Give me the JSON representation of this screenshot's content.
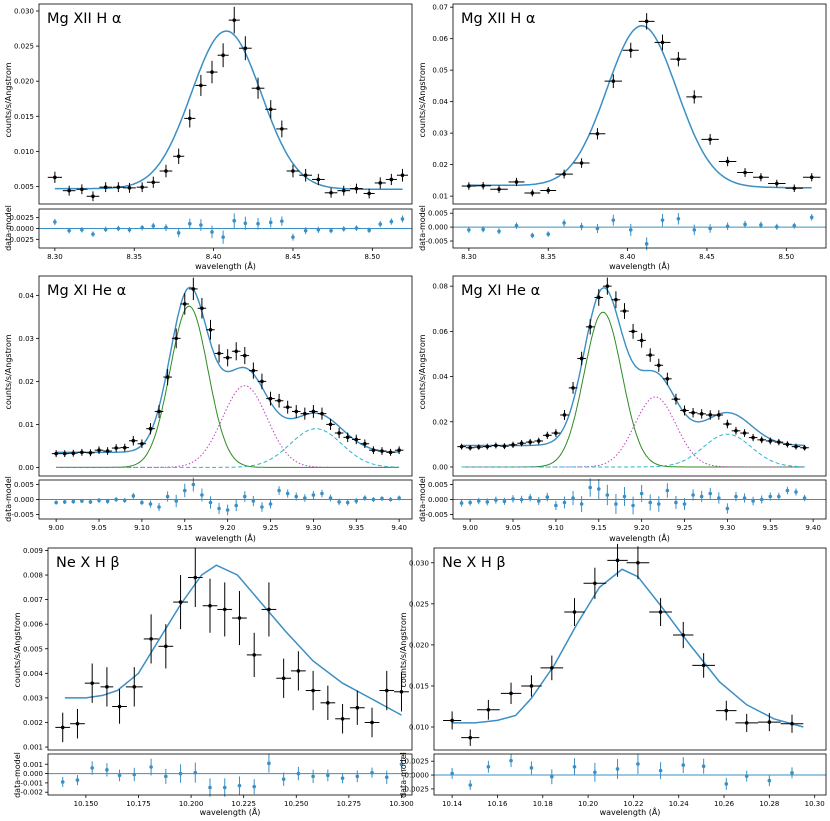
{
  "figure": {
    "xlabel": "wavelength (Å)",
    "residual_ylabel": "data-model",
    "ylabel": "counts/s/Angstrom"
  },
  "colors": {
    "model": "#3a8fc4",
    "data": "#000000",
    "resid": "#3a8fc4",
    "comp1": "#2e8b22",
    "comp2": "#c040c0",
    "comp3": "#2bb5c8"
  },
  "chart_data": [
    {
      "type": "line",
      "title": "Mg XII H α",
      "xlim": [
        8.29,
        8.525
      ],
      "ylim": [
        0.0025,
        0.031
      ],
      "xticks": [
        "8.30",
        "8.35",
        "8.40",
        "8.45",
        "8.50"
      ],
      "yticks": [
        "0.005",
        "0.010",
        "0.015",
        "0.020",
        "0.025",
        "0.030"
      ],
      "ylabel": "counts/s/Angstrom",
      "xlabel": "wavelength (Å)",
      "model": {
        "center": 8.408,
        "sigma": 0.022,
        "amp": 0.0225,
        "base": 0.0047,
        "slope": -0.0005
      },
      "data_x": [
        8.3,
        8.309,
        8.317,
        8.324,
        8.332,
        8.34,
        8.347,
        8.355,
        8.362,
        8.37,
        8.378,
        8.385,
        8.392,
        8.399,
        8.406,
        8.413,
        8.42,
        8.428,
        8.436,
        8.443,
        8.45,
        8.458,
        8.466,
        8.474,
        8.482,
        8.49,
        8.498,
        8.505,
        8.512,
        8.519
      ],
      "data_y": [
        0.0063,
        0.0044,
        0.0046,
        0.0036,
        0.0049,
        0.0049,
        0.0048,
        0.0049,
        0.0056,
        0.0072,
        0.0093,
        0.0147,
        0.0194,
        0.0213,
        0.0237,
        0.0287,
        0.0247,
        0.019,
        0.016,
        0.0132,
        0.0072,
        0.0066,
        0.006,
        0.0041,
        0.0044,
        0.0047,
        0.004,
        0.0055,
        0.006,
        0.0066
      ],
      "data_err": [
        0.0008,
        0.0007,
        0.0007,
        0.0007,
        0.0007,
        0.0007,
        0.0007,
        0.0007,
        0.0008,
        0.0009,
        0.0011,
        0.0013,
        0.0015,
        0.0016,
        0.0017,
        0.0019,
        0.0017,
        0.0015,
        0.0013,
        0.0012,
        0.0009,
        0.0009,
        0.0008,
        0.0007,
        0.0007,
        0.0007,
        0.0007,
        0.0008,
        0.0008,
        0.0009
      ],
      "resid_ylim": [
        -0.0045,
        0.0045
      ],
      "resid_yticks": [
        "0.0025",
        "0.0000",
        "-0.0025"
      ],
      "resid": [
        0.0015,
        -0.0005,
        -0.0003,
        -0.0013,
        -0.0002,
        0.0,
        -0.0003,
        0.0002,
        0.0006,
        0.0002,
        -0.001,
        0.0011,
        0.0008,
        -0.0008,
        -0.002,
        0.0018,
        0.0012,
        0.0011,
        0.0014,
        0.0017,
        -0.002,
        -0.0005,
        -0.0003,
        -0.0005,
        -0.0001,
        0.0001,
        -0.0004,
        0.001,
        0.0016,
        0.0022
      ]
    },
    {
      "type": "line",
      "title": "Mg XII H α",
      "xlim": [
        8.29,
        8.525
      ],
      "ylim": [
        0.0075,
        0.071
      ],
      "xticks": [
        "8.30",
        "8.35",
        "8.40",
        "8.45",
        "8.50"
      ],
      "yticks": [
        "0.01",
        "0.02",
        "0.03",
        "0.04",
        "0.05",
        "0.06",
        "0.07"
      ],
      "ylabel": "counts/s/Angstrom",
      "xlabel": "wavelength (Å)",
      "model": {
        "center": 8.409,
        "sigma": 0.022,
        "amp": 0.051,
        "base": 0.0135,
        "slope": -0.004
      },
      "data_x": [
        8.3,
        8.309,
        8.319,
        8.33,
        8.34,
        8.35,
        8.36,
        8.371,
        8.381,
        8.391,
        8.402,
        8.412,
        8.422,
        8.432,
        8.442,
        8.452,
        8.463,
        8.474,
        8.484,
        8.494,
        8.505,
        8.516
      ],
      "data_y": [
        0.0132,
        0.0133,
        0.0122,
        0.0145,
        0.011,
        0.0118,
        0.017,
        0.0205,
        0.0298,
        0.0465,
        0.0563,
        0.0655,
        0.0588,
        0.0535,
        0.0415,
        0.028,
        0.021,
        0.0175,
        0.016,
        0.014,
        0.0125,
        0.016
      ],
      "data_err": [
        0.0012,
        0.0012,
        0.0012,
        0.0013,
        0.0011,
        0.0011,
        0.0014,
        0.0015,
        0.0018,
        0.0022,
        0.0024,
        0.0026,
        0.0025,
        0.0023,
        0.0021,
        0.0017,
        0.0015,
        0.0014,
        0.0013,
        0.0012,
        0.0012,
        0.0013
      ],
      "resid_ylim": [
        -0.0075,
        0.0065
      ],
      "resid_yticks": [
        "0.005",
        "0.000",
        "-0.005"
      ],
      "resid": [
        -0.001,
        -0.0008,
        -0.0015,
        0.0005,
        -0.003,
        -0.0025,
        0.0015,
        0.0002,
        -0.0005,
        0.0025,
        -0.001,
        -0.006,
        0.0025,
        0.003,
        -0.001,
        -0.0005,
        0.0003,
        0.001,
        0.0008,
        0.0001,
        0.0005,
        0.0035
      ]
    },
    {
      "type": "line",
      "title": "Mg XI He α",
      "xlim": [
        8.98,
        9.415
      ],
      "ylim": [
        -0.002,
        0.0445
      ],
      "xticks": [
        "9.00",
        "9.05",
        "9.10",
        "9.15",
        "9.20",
        "9.25",
        "9.30",
        "9.35",
        "9.40"
      ],
      "yticks": [
        "0.00",
        "0.01",
        "0.02",
        "0.03",
        "0.04"
      ],
      "ylabel": "counts/s/Angstrom",
      "xlabel": "wavelength (Å)",
      "base": 0.0035,
      "components": [
        {
          "center": 9.155,
          "sigma": 0.022,
          "amp": 0.0375,
          "style": "solid",
          "color_key": "comp1"
        },
        {
          "center": 9.22,
          "sigma": 0.026,
          "amp": 0.019,
          "style": "dotted",
          "color_key": "comp2"
        },
        {
          "center": 9.303,
          "sigma": 0.03,
          "amp": 0.009,
          "style": "dashed",
          "color_key": "comp3"
        }
      ],
      "data_x": [
        9.0,
        9.01,
        9.02,
        9.03,
        9.04,
        9.05,
        9.06,
        9.07,
        9.08,
        9.09,
        9.1,
        9.11,
        9.12,
        9.13,
        9.14,
        9.15,
        9.16,
        9.17,
        9.18,
        9.19,
        9.2,
        9.21,
        9.22,
        9.23,
        9.24,
        9.25,
        9.26,
        9.27,
        9.28,
        9.29,
        9.3,
        9.31,
        9.32,
        9.33,
        9.34,
        9.35,
        9.36,
        9.37,
        9.38,
        9.39,
        9.4
      ],
      "data_y": [
        0.0032,
        0.0032,
        0.0033,
        0.0035,
        0.0034,
        0.004,
        0.0038,
        0.0045,
        0.0046,
        0.0062,
        0.0055,
        0.009,
        0.013,
        0.021,
        0.03,
        0.038,
        0.0415,
        0.037,
        0.032,
        0.0265,
        0.0255,
        0.027,
        0.026,
        0.0225,
        0.02,
        0.016,
        0.0155,
        0.014,
        0.013,
        0.0125,
        0.013,
        0.0125,
        0.01,
        0.008,
        0.007,
        0.0065,
        0.0055,
        0.004,
        0.0038,
        0.0035,
        0.004
      ],
      "data_err": [
        0.0008,
        0.0008,
        0.0008,
        0.0008,
        0.0008,
        0.0009,
        0.0009,
        0.0009,
        0.0009,
        0.0011,
        0.001,
        0.0013,
        0.0015,
        0.0019,
        0.0023,
        0.0025,
        0.0026,
        0.0024,
        0.0023,
        0.0021,
        0.002,
        0.0021,
        0.002,
        0.0019,
        0.0018,
        0.0016,
        0.0016,
        0.0015,
        0.0015,
        0.0014,
        0.0015,
        0.0014,
        0.0013,
        0.0012,
        0.0011,
        0.0011,
        0.001,
        0.0009,
        0.0009,
        0.0008,
        0.0009
      ],
      "resid_ylim": [
        -0.0065,
        0.0065
      ],
      "resid_yticks": [
        "0.005",
        "0.000",
        "-0.005"
      ],
      "resid": [
        -0.001,
        -0.0008,
        -0.0007,
        -0.0005,
        -0.0008,
        -0.0003,
        -0.0006,
        0.0,
        -0.0003,
        0.0012,
        -0.001,
        -0.0015,
        -0.0025,
        0.001,
        -0.0005,
        0.003,
        0.005,
        0.0015,
        -0.001,
        -0.003,
        -0.0035,
        -0.002,
        0.001,
        -0.0005,
        -0.0025,
        -0.0015,
        0.003,
        0.002,
        0.001,
        0.0005,
        0.0015,
        0.002,
        0.0005,
        -0.0008,
        -0.001,
        -0.0005,
        0.0005,
        0.0,
        0.0003,
        0.0,
        0.0005
      ]
    },
    {
      "type": "line",
      "title": "Mg XI He α",
      "xlim": [
        8.98,
        9.415
      ],
      "ylim": [
        -0.004,
        0.0845
      ],
      "xticks": [
        "9.00",
        "9.05",
        "9.10",
        "9.15",
        "9.20",
        "9.25",
        "9.30",
        "9.35",
        "9.40"
      ],
      "yticks": [
        "0.00",
        "0.02",
        "0.04",
        "0.06",
        "0.08"
      ],
      "ylabel": "counts/s/Angstrom",
      "xlabel": "wavelength (Å)",
      "base": 0.0095,
      "components": [
        {
          "center": 9.155,
          "sigma": 0.022,
          "amp": 0.0685,
          "style": "solid",
          "color_key": "comp1"
        },
        {
          "center": 9.216,
          "sigma": 0.024,
          "amp": 0.031,
          "style": "dotted",
          "color_key": "comp2"
        },
        {
          "center": 9.3,
          "sigma": 0.028,
          "amp": 0.0145,
          "style": "dashed",
          "color_key": "comp3"
        }
      ],
      "data_x": [
        8.99,
        9.0,
        9.01,
        9.02,
        9.03,
        9.04,
        9.05,
        9.06,
        9.07,
        9.08,
        9.09,
        9.1,
        9.11,
        9.12,
        9.13,
        9.14,
        9.15,
        9.16,
        9.17,
        9.18,
        9.19,
        9.2,
        9.21,
        9.22,
        9.23,
        9.24,
        9.25,
        9.26,
        9.27,
        9.28,
        9.29,
        9.3,
        9.31,
        9.32,
        9.33,
        9.34,
        9.35,
        9.36,
        9.37,
        9.38,
        9.39
      ],
      "data_y": [
        0.009,
        0.0085,
        0.0088,
        0.009,
        0.0095,
        0.0092,
        0.0098,
        0.0105,
        0.011,
        0.0115,
        0.014,
        0.015,
        0.023,
        0.035,
        0.048,
        0.062,
        0.075,
        0.08,
        0.074,
        0.069,
        0.06,
        0.056,
        0.0495,
        0.045,
        0.039,
        0.03,
        0.025,
        0.024,
        0.0235,
        0.023,
        0.023,
        0.019,
        0.016,
        0.015,
        0.013,
        0.012,
        0.0115,
        0.011,
        0.01,
        0.009,
        0.0085
      ],
      "data_err": [
        0.0013,
        0.0012,
        0.0012,
        0.0013,
        0.0013,
        0.0013,
        0.0014,
        0.0014,
        0.0014,
        0.0015,
        0.0016,
        0.0017,
        0.0022,
        0.0026,
        0.003,
        0.0034,
        0.0037,
        0.0038,
        0.0037,
        0.0035,
        0.0033,
        0.0032,
        0.003,
        0.0029,
        0.0027,
        0.0024,
        0.0022,
        0.0021,
        0.0021,
        0.0021,
        0.0021,
        0.0019,
        0.0017,
        0.0017,
        0.0016,
        0.0015,
        0.0015,
        0.0014,
        0.0014,
        0.0013,
        0.0012
      ],
      "resid_ylim": [
        -0.0065,
        0.0065
      ],
      "resid_yticks": [
        "0.005",
        "0.000",
        "-0.005"
      ],
      "resid": [
        -0.0012,
        -0.001,
        -0.0005,
        -0.0008,
        -0.0002,
        -0.0006,
        0.0002,
        0.0,
        0.0006,
        -0.0005,
        0.0008,
        -0.002,
        -0.001,
        0.0005,
        -0.0015,
        0.004,
        0.0035,
        0.0015,
        -0.0015,
        0.001,
        -0.002,
        0.002,
        -0.001,
        -0.0015,
        0.003,
        -0.001,
        -0.0015,
        0.0015,
        0.001,
        0.002,
        0.0005,
        -0.003,
        0.001,
        0.0005,
        -0.0005,
        0.0,
        0.001,
        0.001,
        0.003,
        0.0025,
        0.0005
      ]
    },
    {
      "type": "line",
      "title": "Ne X H β",
      "xlim": [
        10.132,
        10.305
      ],
      "ylim": [
        0.00088,
        0.0091
      ],
      "xticks": [
        "10.150",
        "10.175",
        "10.200",
        "10.225",
        "10.250",
        "10.275",
        "10.300"
      ],
      "yticks": [
        "0.001",
        "0.002",
        "0.003",
        "0.004",
        "0.005",
        "0.006",
        "0.007",
        "0.008",
        "0.009"
      ],
      "ylabel": "counts/s/Angstrom",
      "xlabel": "wavelength (Å)",
      "model_xy": [
        [
          10.14,
          0.003
        ],
        [
          10.15,
          0.003
        ],
        [
          10.158,
          0.0031
        ],
        [
          10.165,
          0.0033
        ],
        [
          10.175,
          0.004
        ],
        [
          10.185,
          0.0054
        ],
        [
          10.195,
          0.0068
        ],
        [
          10.205,
          0.008
        ],
        [
          10.212,
          0.0084
        ],
        [
          10.222,
          0.008
        ],
        [
          10.232,
          0.007
        ],
        [
          10.245,
          0.0057
        ],
        [
          10.258,
          0.0045
        ],
        [
          10.272,
          0.0036
        ],
        [
          10.285,
          0.003
        ],
        [
          10.3,
          0.0023
        ]
      ],
      "data_x": [
        10.139,
        10.146,
        10.153,
        10.16,
        10.166,
        10.173,
        10.181,
        10.188,
        10.195,
        10.202,
        10.209,
        10.216,
        10.223,
        10.23,
        10.237,
        10.244,
        10.251,
        10.258,
        10.265,
        10.272,
        10.279,
        10.286,
        10.293,
        10.3
      ],
      "data_y": [
        0.0018,
        0.00195,
        0.0036,
        0.00345,
        0.00265,
        0.00345,
        0.0054,
        0.0051,
        0.0069,
        0.0079,
        0.00675,
        0.0066,
        0.00625,
        0.00475,
        0.0066,
        0.0038,
        0.0041,
        0.0033,
        0.0028,
        0.00215,
        0.0026,
        0.002,
        0.0033,
        0.00325
      ],
      "data_err": [
        0.0006,
        0.0006,
        0.0008,
        0.0008,
        0.0007,
        0.0008,
        0.001,
        0.0009,
        0.0011,
        0.0012,
        0.0011,
        0.0011,
        0.0011,
        0.0009,
        0.0011,
        0.0008,
        0.0008,
        0.0008,
        0.0007,
        0.0006,
        0.0007,
        0.0006,
        0.0008,
        0.0008
      ],
      "resid_ylim": [
        -0.0023,
        0.0021
      ],
      "resid_yticks": [
        "0.001",
        "0.000",
        "-0.001",
        "-0.002"
      ],
      "resid": [
        -0.0009,
        -0.0007,
        0.0006,
        0.0004,
        -0.0002,
        -0.0001,
        0.0007,
        -0.0003,
        0.0,
        0.0001,
        -0.0015,
        -0.0015,
        -0.0013,
        -0.0014,
        0.0011,
        -0.0006,
        0.0,
        -0.0003,
        -0.0002,
        -0.0005,
        -0.0003,
        0.0001,
        -0.0004,
        0.001
      ]
    },
    {
      "type": "line",
      "title": "Ne X H β",
      "xlim": [
        10.132,
        10.305
      ],
      "ylim": [
        0.0072,
        0.0318
      ],
      "xticks": [
        "10.14",
        "10.16",
        "10.18",
        "10.20",
        "10.22",
        "10.24",
        "10.26",
        "10.28",
        "10.30"
      ],
      "yticks": [
        "0.010",
        "0.015",
        "0.020",
        "0.025",
        "0.030"
      ],
      "ylabel": "counts/s/Angstrom",
      "xlabel": "wavelength (Å)",
      "model_xy": [
        [
          10.14,
          0.0105
        ],
        [
          10.15,
          0.0105
        ],
        [
          10.16,
          0.0108
        ],
        [
          10.168,
          0.0114
        ],
        [
          10.175,
          0.0135
        ],
        [
          10.185,
          0.0175
        ],
        [
          10.195,
          0.0225
        ],
        [
          10.205,
          0.027
        ],
        [
          10.215,
          0.0292
        ],
        [
          10.222,
          0.0283
        ],
        [
          10.232,
          0.0248
        ],
        [
          10.245,
          0.02
        ],
        [
          10.258,
          0.0155
        ],
        [
          10.27,
          0.0127
        ],
        [
          10.282,
          0.011
        ],
        [
          10.295,
          0.01
        ]
      ],
      "data_x": [
        10.14,
        10.148,
        10.156,
        10.166,
        10.175,
        10.184,
        10.194,
        10.203,
        10.213,
        10.222,
        10.232,
        10.242,
        10.251,
        10.261,
        10.27,
        10.28,
        10.29
      ],
      "data_y": [
        0.0108,
        0.0087,
        0.0121,
        0.0141,
        0.015,
        0.0172,
        0.024,
        0.0275,
        0.0303,
        0.03,
        0.024,
        0.0212,
        0.0175,
        0.012,
        0.0105,
        0.0106,
        0.0104
      ],
      "data_err": [
        0.0011,
        0.001,
        0.0012,
        0.0013,
        0.0013,
        0.0015,
        0.0017,
        0.0019,
        0.002,
        0.002,
        0.0017,
        0.0016,
        0.0015,
        0.0012,
        0.0011,
        0.0011,
        0.0011
      ],
      "resid_ylim": [
        -0.0036,
        0.0038
      ],
      "resid_yticks": [
        "0.0025",
        "0.0000",
        "-0.0025"
      ],
      "resid": [
        0.0003,
        -0.0018,
        0.0015,
        0.0026,
        0.0013,
        -0.0003,
        0.0015,
        0.0005,
        0.0011,
        0.002,
        0.0008,
        0.0018,
        0.0016,
        -0.0016,
        -0.0002,
        -0.001,
        0.0004
      ]
    }
  ]
}
